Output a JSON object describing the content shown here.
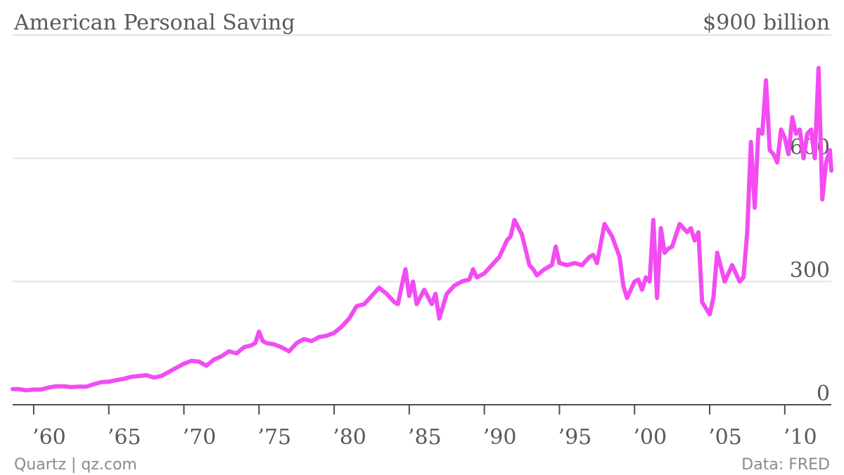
{
  "chart_data": {
    "type": "line",
    "title": "American Personal Saving",
    "unit_label": "$900 billion",
    "y_ticks": [
      0,
      300,
      600
    ],
    "ylim": [
      0,
      900
    ],
    "xlim": [
      1958.6,
      2013.1
    ],
    "x_ticks": [
      1960,
      1965,
      1970,
      1975,
      1980,
      1985,
      1990,
      1995,
      2000,
      2005,
      2010
    ],
    "x_tick_labels": [
      "’60",
      "’65",
      "’70",
      "’75",
      "’80",
      "’85",
      "’90",
      "’95",
      "’00",
      "’05",
      "’10"
    ],
    "grid": true,
    "color": "#f24cf2",
    "series": [
      {
        "x": [
          1958.6,
          1959.0,
          1959.5,
          1960.0,
          1960.5,
          1961.0,
          1961.5,
          1962.0,
          1962.5,
          1963.0,
          1963.5,
          1964.0,
          1964.5,
          1965.0,
          1965.5,
          1966.0,
          1966.5,
          1967.0,
          1967.5,
          1968.0,
          1968.5,
          1969.0,
          1969.5,
          1970.0,
          1970.5,
          1971.0,
          1971.5,
          1972.0,
          1972.5,
          1973.0,
          1973.5,
          1974.0,
          1974.5,
          1974.75,
          1975.0,
          1975.25,
          1975.5,
          1976.0,
          1976.5,
          1977.0,
          1977.5,
          1978.0,
          1978.5,
          1979.0,
          1979.5,
          1980.0,
          1980.5,
          1981.0,
          1981.5,
          1982.0,
          1982.5,
          1983.0,
          1983.5,
          1984.0,
          1984.25,
          1984.5,
          1984.75,
          1985.0,
          1985.25,
          1985.5,
          1986.0,
          1986.5,
          1986.75,
          1987.0,
          1987.25,
          1987.5,
          1988.0,
          1988.5,
          1989.0,
          1989.25,
          1989.5,
          1990.0,
          1990.5,
          1991.0,
          1991.5,
          1991.75,
          1992.0,
          1992.5,
          1993.0,
          1993.25,
          1993.5,
          1994.0,
          1994.5,
          1994.75,
          1995.0,
          1995.5,
          1996.0,
          1996.5,
          1997.0,
          1997.25,
          1997.5,
          1998.0,
          1998.5,
          1999.0,
          1999.25,
          1999.5,
          2000.0,
          2000.25,
          2000.5,
          2000.75,
          2001.0,
          2001.25,
          2001.5,
          2001.75,
          2002.0,
          2002.25,
          2002.5,
          2003.0,
          2003.5,
          2003.75,
          2004.0,
          2004.25,
          2004.5,
          2005.0,
          2005.25,
          2005.5,
          2006.0,
          2006.5,
          2007.0,
          2007.25,
          2007.5,
          2007.75,
          2008.0,
          2008.25,
          2008.5,
          2008.75,
          2009.0,
          2009.25,
          2009.5,
          2009.75,
          2010.0,
          2010.25,
          2010.5,
          2010.75,
          2011.0,
          2011.25,
          2011.5,
          2011.75,
          2012.0,
          2012.25,
          2012.5,
          2012.75,
          2013.0,
          2013.1
        ],
        "y": [
          38,
          38,
          35,
          37,
          37,
          42,
          45,
          45,
          43,
          44,
          44,
          50,
          55,
          56,
          60,
          63,
          68,
          70,
          72,
          66,
          70,
          80,
          90,
          100,
          107,
          105,
          95,
          110,
          118,
          130,
          125,
          140,
          145,
          150,
          178,
          155,
          150,
          147,
          140,
          130,
          150,
          160,
          155,
          165,
          168,
          175,
          190,
          210,
          240,
          245,
          265,
          285,
          270,
          250,
          245,
          290,
          330,
          265,
          300,
          245,
          280,
          245,
          270,
          210,
          240,
          270,
          290,
          300,
          305,
          330,
          310,
          320,
          340,
          360,
          400,
          410,
          450,
          415,
          340,
          330,
          315,
          330,
          340,
          385,
          345,
          340,
          345,
          340,
          360,
          365,
          345,
          440,
          410,
          360,
          290,
          260,
          300,
          305,
          280,
          310,
          300,
          450,
          260,
          430,
          370,
          380,
          385,
          440,
          420,
          430,
          400,
          420,
          250,
          220,
          260,
          370,
          300,
          340,
          300,
          310,
          420,
          640,
          480,
          670,
          660,
          790,
          620,
          610,
          590,
          670,
          650,
          610,
          700,
          660,
          670,
          600,
          660,
          670,
          600,
          820,
          500,
          590,
          620,
          570
        ]
      }
    ],
    "footer_left": "Quartz | qz.com",
    "footer_right": "Data: FRED"
  }
}
